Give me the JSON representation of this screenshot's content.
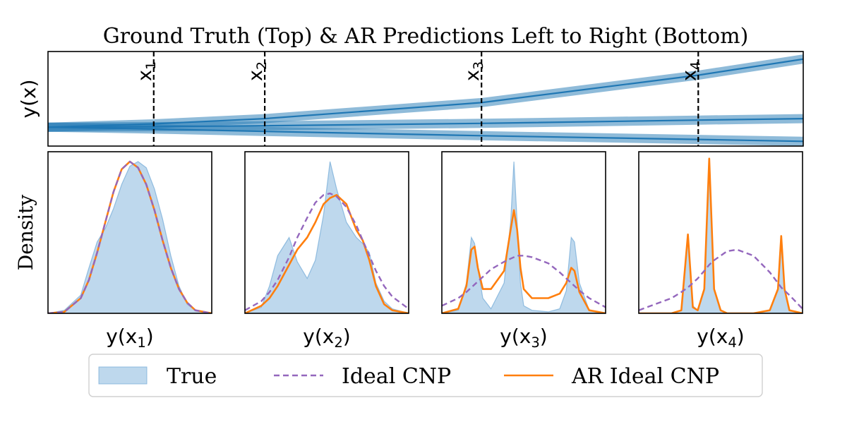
{
  "title": "Ground Truth (Top) & AR Predictions Left to Right (Bottom)",
  "colors": {
    "true_fill": "#6fa8d6",
    "true_band": "#1f77b4",
    "ideal_cnp": "#9467bd",
    "ar_ideal_cnp": "#ff7f0e",
    "marker": "#000000"
  },
  "chart_data": [
    {
      "type": "line",
      "panel": "top",
      "ylabel": "y(x)",
      "xlim": [
        0,
        1
      ],
      "ylim": [
        0,
        1
      ],
      "markers": [
        {
          "label": "x",
          "sub": "1",
          "x": 0.14
        },
        {
          "label": "x",
          "sub": "2",
          "x": 0.287
        },
        {
          "label": "x",
          "sub": "3",
          "x": 0.574
        },
        {
          "label": "x",
          "sub": "4",
          "x": 0.861
        }
      ],
      "series": [
        {
          "x": [
            0,
            0.14,
            0.287,
            0.574,
            0.861,
            1.0
          ],
          "y": [
            0.2,
            0.235,
            0.29,
            0.46,
            0.75,
            0.92
          ]
        },
        {
          "x": [
            0,
            0.14,
            0.287,
            0.574,
            0.861,
            1.0
          ],
          "y": [
            0.2,
            0.205,
            0.215,
            0.24,
            0.275,
            0.29
          ]
        },
        {
          "x": [
            0,
            0.14,
            0.287,
            0.574,
            0.861,
            1.0
          ],
          "y": [
            0.2,
            0.18,
            0.155,
            0.11,
            0.07,
            0.05
          ]
        }
      ]
    },
    {
      "type": "area",
      "panel": "bottom-1",
      "ylabel": "Density",
      "xlabel": "y(x",
      "xlabel_sub": "1",
      "xlabel_end": ")",
      "xlim": [
        0,
        1
      ],
      "ylim": [
        0,
        1
      ],
      "x": [
        0,
        0.1,
        0.2,
        0.25,
        0.3,
        0.35,
        0.4,
        0.45,
        0.5,
        0.55,
        0.6,
        0.65,
        0.7,
        0.75,
        0.8,
        0.85,
        0.9,
        1.0
      ],
      "series": [
        {
          "name": "True",
          "y": [
            0,
            0.02,
            0.12,
            0.3,
            0.47,
            0.56,
            0.69,
            0.85,
            0.97,
            1.0,
            0.96,
            0.82,
            0.62,
            0.38,
            0.18,
            0.06,
            0.02,
            0
          ]
        },
        {
          "name": "Ideal CNP",
          "y": [
            0,
            0.01,
            0.1,
            0.22,
            0.4,
            0.6,
            0.8,
            0.95,
            1.0,
            0.96,
            0.85,
            0.68,
            0.48,
            0.3,
            0.16,
            0.07,
            0.02,
            0
          ]
        },
        {
          "name": "AR Ideal CNP",
          "y": [
            0,
            0.01,
            0.1,
            0.22,
            0.4,
            0.6,
            0.8,
            0.95,
            1.0,
            0.96,
            0.85,
            0.68,
            0.48,
            0.3,
            0.16,
            0.07,
            0.02,
            0
          ]
        }
      ]
    },
    {
      "type": "area",
      "panel": "bottom-2",
      "xlabel": "y(x",
      "xlabel_sub": "2",
      "xlabel_end": ")",
      "xlim": [
        0,
        1
      ],
      "ylim": [
        0,
        1
      ],
      "x": [
        0,
        0.1,
        0.15,
        0.2,
        0.27,
        0.32,
        0.38,
        0.43,
        0.48,
        0.52,
        0.56,
        0.62,
        0.68,
        0.72,
        0.76,
        0.8,
        0.85,
        0.9,
        1.0
      ],
      "series": [
        {
          "name": "True",
          "y": [
            0,
            0.04,
            0.18,
            0.38,
            0.5,
            0.34,
            0.23,
            0.35,
            0.65,
            1.0,
            0.82,
            0.6,
            0.5,
            0.46,
            0.4,
            0.2,
            0.08,
            0.03,
            0
          ]
        },
        {
          "name": "Ideal CNP",
          "y": [
            0.02,
            0.08,
            0.14,
            0.22,
            0.37,
            0.5,
            0.63,
            0.73,
            0.78,
            0.79,
            0.77,
            0.7,
            0.58,
            0.48,
            0.38,
            0.28,
            0.18,
            0.11,
            0.03
          ]
        },
        {
          "name": "AR Ideal CNP",
          "y": [
            0,
            0.05,
            0.1,
            0.18,
            0.32,
            0.42,
            0.5,
            0.6,
            0.72,
            0.76,
            0.78,
            0.72,
            0.55,
            0.48,
            0.35,
            0.18,
            0.06,
            0.02,
            0
          ]
        }
      ]
    },
    {
      "type": "area",
      "panel": "bottom-3",
      "xlabel": "y(x",
      "xlabel_sub": "3",
      "xlabel_end": ")",
      "xlim": [
        0,
        1
      ],
      "ylim": [
        0,
        1
      ],
      "x": [
        0,
        0.1,
        0.15,
        0.18,
        0.2,
        0.22,
        0.25,
        0.3,
        0.38,
        0.42,
        0.44,
        0.46,
        0.48,
        0.5,
        0.55,
        0.65,
        0.72,
        0.76,
        0.79,
        0.81,
        0.84,
        0.9,
        1.0
      ],
      "series": [
        {
          "name": "True",
          "y": [
            0,
            0.02,
            0.2,
            0.5,
            0.46,
            0.3,
            0.1,
            0.03,
            0.2,
            0.6,
            1.0,
            0.6,
            0.2,
            0.05,
            0.02,
            0.01,
            0.03,
            0.15,
            0.5,
            0.47,
            0.2,
            0.02,
            0
          ]
        },
        {
          "name": "Ideal CNP",
          "y": [
            0.05,
            0.1,
            0.14,
            0.17,
            0.19,
            0.21,
            0.24,
            0.29,
            0.34,
            0.36,
            0.37,
            0.38,
            0.38,
            0.38,
            0.37,
            0.33,
            0.27,
            0.23,
            0.2,
            0.18,
            0.15,
            0.1,
            0.04
          ]
        },
        {
          "name": "AR Ideal CNP",
          "y": [
            0,
            0.03,
            0.18,
            0.42,
            0.44,
            0.3,
            0.16,
            0.16,
            0.28,
            0.55,
            0.68,
            0.55,
            0.3,
            0.16,
            0.1,
            0.1,
            0.13,
            0.2,
            0.3,
            0.28,
            0.14,
            0.02,
            0
          ]
        }
      ]
    },
    {
      "type": "area",
      "panel": "bottom-4",
      "xlabel": "y(x",
      "xlabel_sub": "4",
      "xlabel_end": ")",
      "xlim": [
        0,
        1
      ],
      "ylim": [
        0,
        1
      ],
      "x": [
        0,
        0.2,
        0.26,
        0.3,
        0.33,
        0.36,
        0.4,
        0.43,
        0.46,
        0.5,
        0.54,
        0.6,
        0.7,
        0.8,
        0.85,
        0.87,
        0.89,
        0.92,
        1.0
      ],
      "series": [
        {
          "name": "True",
          "y": [
            0,
            0,
            0.02,
            0.5,
            0.05,
            0.02,
            0.15,
            1.0,
            0.15,
            0.02,
            0,
            0,
            0,
            0.02,
            0.15,
            0.5,
            0.15,
            0.02,
            0
          ]
        },
        {
          "name": "Ideal CNP",
          "y": [
            0.02,
            0.1,
            0.14,
            0.17,
            0.2,
            0.23,
            0.28,
            0.32,
            0.35,
            0.38,
            0.41,
            0.42,
            0.38,
            0.27,
            0.2,
            0.17,
            0.15,
            0.12,
            0.03
          ]
        },
        {
          "name": "AR Ideal CNP",
          "y": [
            0,
            0,
            0.02,
            0.52,
            0.04,
            0.02,
            0.16,
            1.02,
            0.16,
            0.02,
            0,
            0,
            0,
            0.02,
            0.16,
            0.51,
            0.16,
            0.02,
            0
          ]
        }
      ]
    }
  ],
  "legend": {
    "items": [
      {
        "label": "True"
      },
      {
        "label": "Ideal CNP"
      },
      {
        "label": "AR Ideal CNP"
      }
    ]
  }
}
